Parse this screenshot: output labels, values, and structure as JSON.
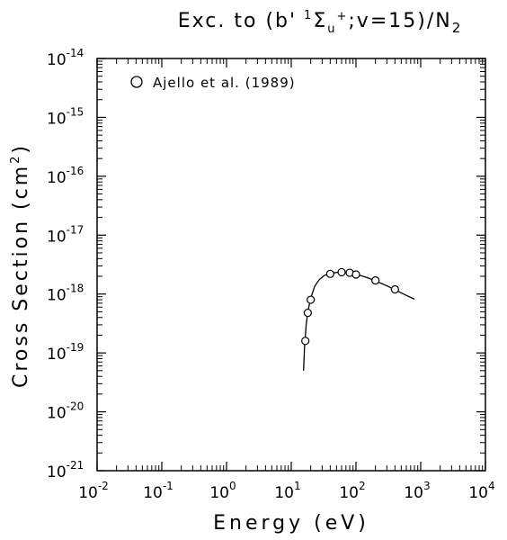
{
  "chart_data": {
    "type": "scatter",
    "title": {
      "prefix": "Exc. to (b'",
      "sup1": "1",
      "sigma": "Σ",
      "sub_u": "u",
      "sup_plus": "+",
      "middle": ";v=15)/N",
      "sub2": "2"
    },
    "xlabel": "Energy (eV)",
    "ylabel": {
      "text": "Cross Section (cm",
      "sup": "2",
      "close": ")"
    },
    "x_scale": "log",
    "y_scale": "log",
    "xlim": [
      0.01,
      10000
    ],
    "ylim": [
      1e-21,
      1e-14
    ],
    "x_ticks": [
      {
        "base": "10",
        "exp": "-2"
      },
      {
        "base": "10",
        "exp": "-1"
      },
      {
        "base": "10",
        "exp": "0"
      },
      {
        "base": "10",
        "exp": "1"
      },
      {
        "base": "10",
        "exp": "2"
      },
      {
        "base": "10",
        "exp": "3"
      },
      {
        "base": "10",
        "exp": "4"
      }
    ],
    "y_ticks": [
      {
        "base": "10",
        "exp": "-21"
      },
      {
        "base": "10",
        "exp": "-20"
      },
      {
        "base": "10",
        "exp": "-19"
      },
      {
        "base": "10",
        "exp": "-18"
      },
      {
        "base": "10",
        "exp": "-17"
      },
      {
        "base": "10",
        "exp": "-16"
      },
      {
        "base": "10",
        "exp": "-15"
      },
      {
        "base": "10",
        "exp": "-14"
      }
    ],
    "grid": false,
    "legend": {
      "position": "top-left",
      "marker": "open-circle",
      "label": "Ajello et al. (1989)"
    },
    "series": [
      {
        "name": "Ajello et al. (1989)",
        "kind": "points",
        "marker": "open-circle",
        "x": [
          16.5,
          18,
          20,
          40,
          60,
          80,
          100,
          200,
          400
        ],
        "y": [
          1.6e-19,
          4.8e-19,
          8e-19,
          2.2e-18,
          2.35e-18,
          2.3e-18,
          2.15e-18,
          1.7e-18,
          1.2e-18
        ]
      },
      {
        "kind": "line",
        "x": [
          15.5,
          16,
          17,
          18,
          20,
          23,
          27,
          32,
          40,
          50,
          60,
          80,
          100,
          150,
          200,
          300,
          400,
          600,
          800
        ],
        "y": [
          5e-20,
          1.2e-19,
          3e-19,
          5e-19,
          8.5e-19,
          1.35e-18,
          1.75e-18,
          2.05e-18,
          2.25e-18,
          2.33e-18,
          2.35e-18,
          2.3e-18,
          2.18e-18,
          1.9e-18,
          1.68e-18,
          1.38e-18,
          1.18e-18,
          9.5e-19,
          8.2e-19
        ]
      }
    ]
  }
}
